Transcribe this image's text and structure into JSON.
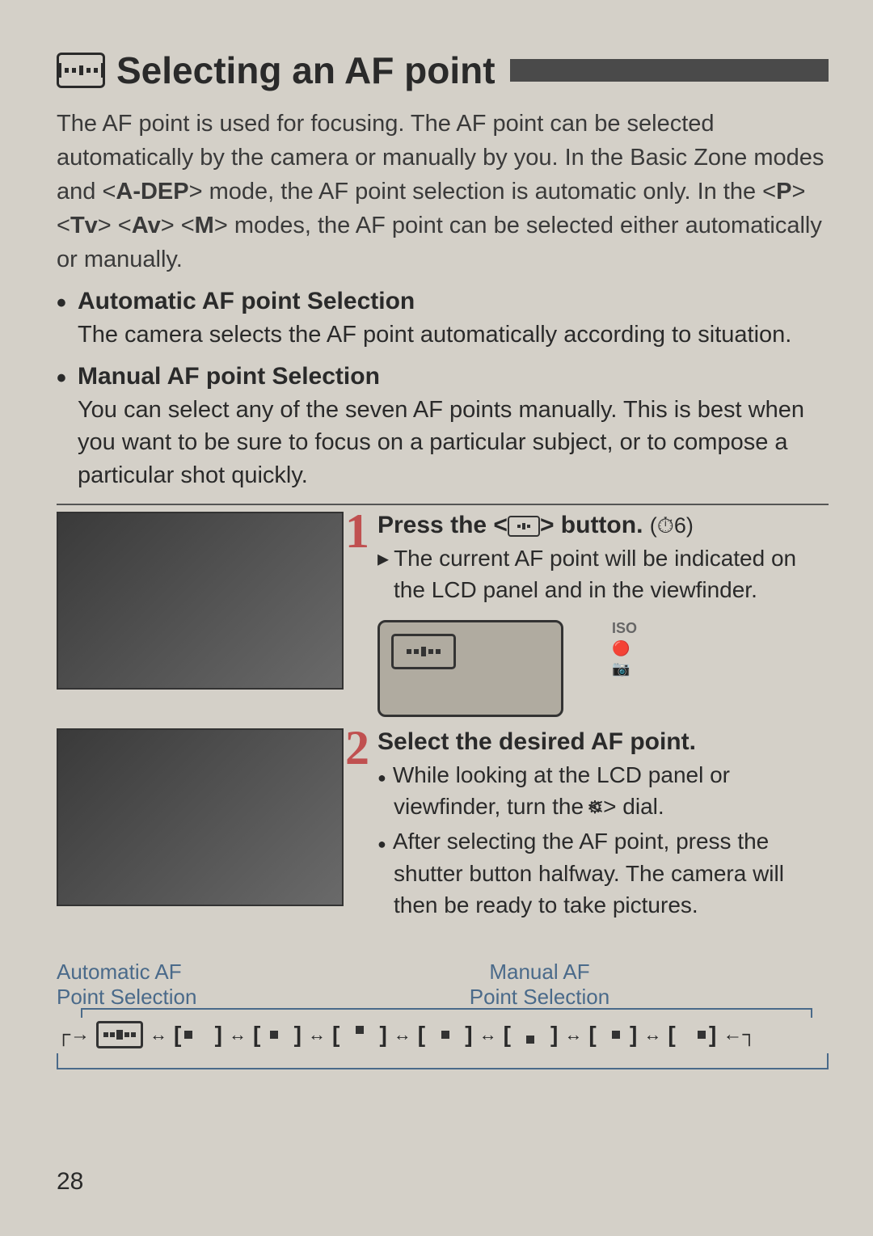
{
  "title": "Selecting an AF point",
  "intro": "The AF point is used for focusing. The AF point can be selected automatically by the camera or manually by you. In the Basic Zone modes and <A-DEP> mode, the AF point selection is automatic only. In the <P> <Tv> <Av> <M> modes, the AF point can be selected either automatically or manually.",
  "auto": {
    "heading": "Automatic AF point Selection",
    "body": "The camera selects the AF point automatically according to situation."
  },
  "manual": {
    "heading": "Manual AF point Selection",
    "body": "You can select any of the seven AF points manually. This is best when you want to be sure to focus on a particular subject, or to compose a particular shot quickly."
  },
  "step1": {
    "num": "1",
    "title_pre": "Press the <",
    "title_post": "> button.",
    "timer": "(⏱6)",
    "line1": "The current AF point will be indicated on the LCD panel and in the viewfinder.",
    "side_labels": [
      "ISO",
      "🔴",
      "📷"
    ]
  },
  "step2": {
    "num": "2",
    "title": "Select the desired AF point.",
    "line1_pre": "While looking at the LCD panel or viewfinder, turn the <",
    "line1_post": "> dial.",
    "line2": "After selecting the AF point, press the shutter button halfway. The camera will then be ready to take pictures."
  },
  "diagram": {
    "auto_label_l1": "Automatic AF",
    "auto_label_l2": "Point Selection",
    "manual_label_l1": "Manual AF",
    "manual_label_l2": "Point Selection"
  },
  "page_number": "28"
}
